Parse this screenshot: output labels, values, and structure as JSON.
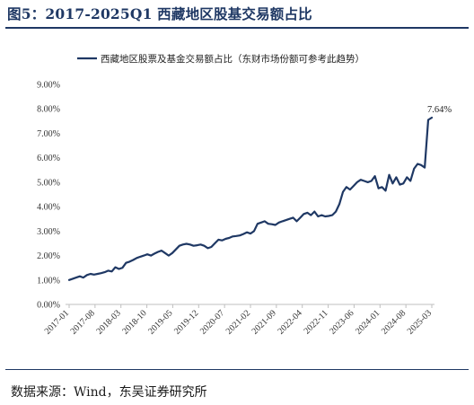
{
  "figure": {
    "title": "图5：2017-2025Q1 西藏地区股基交易额占比",
    "source": "数据来源：Wind，东吴证券研究所"
  },
  "colors": {
    "line": "#1f3864",
    "title": "#1f3864",
    "axis": "#bfbfbf"
  },
  "chart_data": {
    "type": "line",
    "title": "",
    "legend": {
      "position": "top",
      "entries": [
        "西藏地区股票及基金交易额占比（东财市场份额可参考此趋势）"
      ]
    },
    "ylabel": "",
    "xlabel": "",
    "ylim": [
      0,
      9
    ],
    "yticks": [
      "0.00%",
      "1.00%",
      "2.00%",
      "3.00%",
      "4.00%",
      "5.00%",
      "6.00%",
      "7.00%",
      "8.00%",
      "9.00%"
    ],
    "xticks": [
      "2017-01",
      "2017-08",
      "2018-03",
      "2018-10",
      "2019-05",
      "2019-12",
      "2020-07",
      "2021-02",
      "2021-09",
      "2022-04",
      "2022-11",
      "2023-06",
      "2024-01",
      "2024-08",
      "2025-03"
    ],
    "grid": false,
    "annotation": "7.64%",
    "series": [
      {
        "name": "西藏地区股票及基金交易额占比（东财市场份额可参考此趋势）",
        "values": [
          1.0,
          1.05,
          1.1,
          1.15,
          1.1,
          1.2,
          1.25,
          1.22,
          1.25,
          1.28,
          1.32,
          1.38,
          1.35,
          1.52,
          1.45,
          1.5,
          1.7,
          1.75,
          1.82,
          1.9,
          1.95,
          2.0,
          2.05,
          2.0,
          2.08,
          2.15,
          2.2,
          2.1,
          2.0,
          2.1,
          2.25,
          2.4,
          2.45,
          2.48,
          2.45,
          2.4,
          2.42,
          2.45,
          2.4,
          2.3,
          2.35,
          2.5,
          2.65,
          2.62,
          2.68,
          2.72,
          2.78,
          2.8,
          2.82,
          2.88,
          2.95,
          2.9,
          3.0,
          3.3,
          3.35,
          3.4,
          3.3,
          3.28,
          3.25,
          3.35,
          3.4,
          3.45,
          3.5,
          3.55,
          3.4,
          3.55,
          3.7,
          3.75,
          3.65,
          3.8,
          3.6,
          3.65,
          3.6,
          3.62,
          3.65,
          3.8,
          4.1,
          4.6,
          4.8,
          4.7,
          4.85,
          5.0,
          5.1,
          5.05,
          5.0,
          5.05,
          5.25,
          4.75,
          4.8,
          4.65,
          5.3,
          4.95,
          5.2,
          4.9,
          4.95,
          5.2,
          5.05,
          5.55,
          5.75,
          5.7,
          5.6,
          7.55,
          7.64
        ]
      }
    ]
  }
}
